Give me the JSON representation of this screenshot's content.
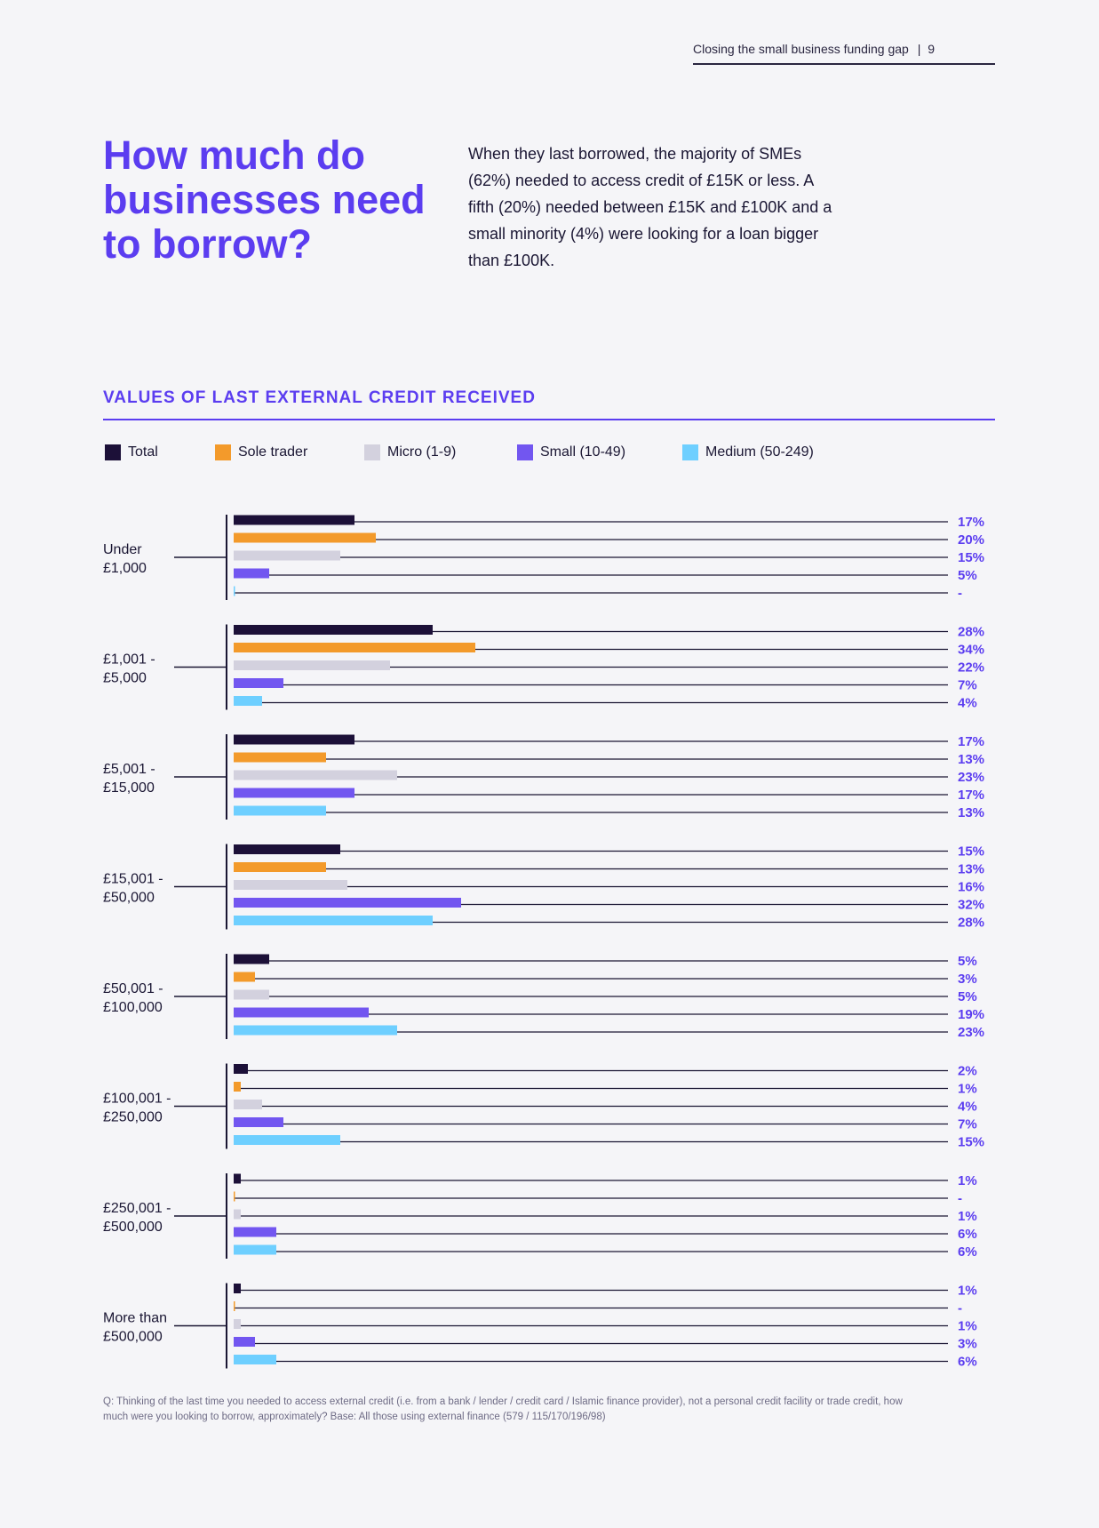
{
  "header": {
    "document_title": "Closing the small business funding gap",
    "separator": "|",
    "page_number": "9"
  },
  "heading": "How much do businesses need to borrow?",
  "intro": "When they last borrowed, the majority of SMEs (62%) needed to access credit of £15K or less. A fifth (20%) needed between £15K and £100K and a small minority (4%) were looking for a loan bigger than £100K.",
  "chart_data": {
    "type": "bar",
    "orientation": "horizontal",
    "title": "VALUES OF LAST EXTERNAL CREDIT RECEIVED",
    "xlabel": "",
    "ylabel": "",
    "unit": "%",
    "xlim": [
      0,
      100
    ],
    "legend_position": "top-left",
    "categories": [
      "Under £1,000",
      "£1,001 - £5,000",
      "£5,001 - £15,000",
      "£15,001 - £50,000",
      "£50,001 - £100,000",
      "£100,001 - £250,000",
      "£250,001 - £500,000",
      "More than £500,000"
    ],
    "category_lines": [
      [
        "Under",
        "£1,000"
      ],
      [
        "£1,001 -",
        "£5,000"
      ],
      [
        "£5,001 -",
        "£15,000"
      ],
      [
        "£15,001 -",
        "£50,000"
      ],
      [
        "£50,001 -",
        "£100,000"
      ],
      [
        "£100,001 -",
        "£250,000"
      ],
      [
        "£250,001 -",
        "£500,000"
      ],
      [
        "More than",
        "£500,000"
      ]
    ],
    "series": [
      {
        "name": "Total",
        "color": "#1c1038",
        "values": [
          17,
          28,
          17,
          15,
          5,
          2,
          1,
          1
        ],
        "labels": [
          "17%",
          "28%",
          "17%",
          "15%",
          "5%",
          "2%",
          "1%",
          "1%"
        ]
      },
      {
        "name": "Sole trader",
        "color": "#f39a2b",
        "values": [
          20,
          34,
          13,
          13,
          3,
          1,
          0,
          0
        ],
        "labels": [
          "20%",
          "34%",
          "13%",
          "13%",
          "3%",
          "1%",
          "-",
          "-"
        ]
      },
      {
        "name": "Micro (1-9)",
        "color": "#d3d1de",
        "values": [
          15,
          22,
          23,
          16,
          5,
          4,
          1,
          1
        ],
        "labels": [
          "15%",
          "22%",
          "23%",
          "16%",
          "5%",
          "4%",
          "1%",
          "1%"
        ]
      },
      {
        "name": "Small (10-49)",
        "color": "#7256f0",
        "values": [
          5,
          7,
          17,
          32,
          19,
          7,
          6,
          3
        ],
        "labels": [
          "5%",
          "7%",
          "17%",
          "32%",
          "19%",
          "7%",
          "6%",
          "3%"
        ]
      },
      {
        "name": "Medium (50-249)",
        "color": "#6ecfff",
        "values": [
          0,
          4,
          13,
          28,
          23,
          15,
          6,
          6
        ],
        "labels": [
          "-",
          "4%",
          "13%",
          "28%",
          "23%",
          "15%",
          "6%",
          "6%"
        ]
      }
    ]
  },
  "footnote": "Q: Thinking of the last time you needed to access external credit (i.e. from a bank / lender / credit card / Islamic finance provider), not a personal credit facility or trade credit, how much were you looking to borrow, approximately? Base: All those using external finance (579 / 115/170/196/98)"
}
